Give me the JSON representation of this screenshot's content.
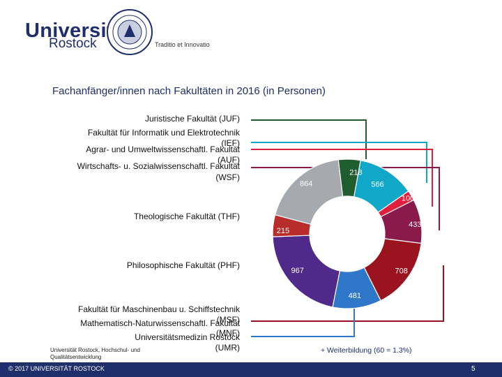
{
  "header": {
    "university": "Universität",
    "city": "Rostock",
    "motto": "Traditio et Innovatio",
    "seal_text": "Universität Rostock seit 1419"
  },
  "slide": {
    "title": "Fachanfänger/innen nach Fakultäten in 2016 (in Personen)",
    "note": "+ Weiterbildung (60 = 1.3%)",
    "source": "Universität Rostock, Hochschul- und Qualitätsentwicklung",
    "footer": "© 2017 UNIVERSITÄT ROSTOCK",
    "page_number": "5"
  },
  "chart_data": {
    "type": "pie",
    "variant": "donut",
    "title": "Fachanfänger/innen nach Fakultäten in 2016 (in Personen)",
    "slices": [
      {
        "label": "Juristische Fakultät (JUF)",
        "value": 218,
        "color": "#1f5c2e"
      },
      {
        "label": "Fakultät für Informatik und Elektrotechnik (IEF)",
        "value": 566,
        "color": "#11a7c9"
      },
      {
        "label": "Agrar- und Umweltwissenschaftl. Fakultät (AUF)",
        "value": 100,
        "color": "#e01f3d"
      },
      {
        "label": "Wirtschafts- u. Sozialwissenschaftl. Fakultät (WSF)",
        "value": 433,
        "color": "#8a1a4a"
      },
      {
        "label": "Fakultät für Maschinenbau u. Schiffstechnik (MSF)",
        "value": 708,
        "color": "#9a1420"
      },
      {
        "label": "Mathematisch-Naturwissenschaftl. Fakultät (MNF)",
        "value": 481,
        "color": "#2f77c9"
      },
      {
        "label": "Philosophische Fakultät (PHF)",
        "value": 967,
        "color": "#4f2a8a"
      },
      {
        "label": "Theologische Fakultät (THF)",
        "value": 215,
        "color": "#b82c2c"
      },
      {
        "label": "Universitätsmedizin Rostock (UMR)",
        "value": 864,
        "color": "#a6a9ad"
      }
    ],
    "legend_labels": {
      "juf": "Juristische Fakultät  (JUF)",
      "ief_1": "Fakultät für Informatik und Elektrotechnik",
      "ief_2": "(IEF)",
      "auf_1": "Agrar- und Umweltwissenschaftl. Fakultät",
      "auf_2": "(AUF)",
      "wsf_1": "Wirtschafts- u. Sozialwissenschaftl. Fakultät",
      "wsf_2": "(WSF)",
      "thf": "Theologische Fakultät  (THF)",
      "phf": "Philosophische Fakultät  (PHF)",
      "msf_1": "Fakultät für Maschinenbau u. Schiffstechnik",
      "msf_2": "(MSF)",
      "mnf_1": "Mathematisch-Naturwissenschaftl. Fakultät",
      "mnf_2": "(MNF)",
      "umr_1": "Universitätsmedizin Rostock",
      "umr_2": "(UMR)"
    }
  }
}
